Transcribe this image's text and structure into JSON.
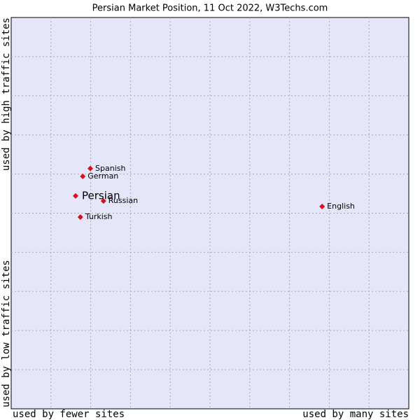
{
  "chart_data": {
    "type": "scatter",
    "title": "Persian Market Position, 11 Oct 2022, W3Techs.com",
    "x_label_low": "used by fewer sites",
    "x_label_high": "used by many sites",
    "y_label_low": "used by low traffic sites",
    "y_label_high": "used by high traffic sites",
    "categories": [
      "Spanish",
      "German",
      "Persian",
      "Russian",
      "Turkish",
      "English"
    ],
    "x": [
      1.99,
      1.8,
      1.62,
      2.32,
      1.74,
      7.82
    ],
    "values": [
      6.14,
      5.94,
      5.44,
      5.31,
      4.9,
      5.17
    ],
    "highlight_index": 2,
    "color": "#d4101c",
    "xlim": [
      0,
      10
    ],
    "ylim": [
      0,
      10
    ],
    "grid": true
  }
}
